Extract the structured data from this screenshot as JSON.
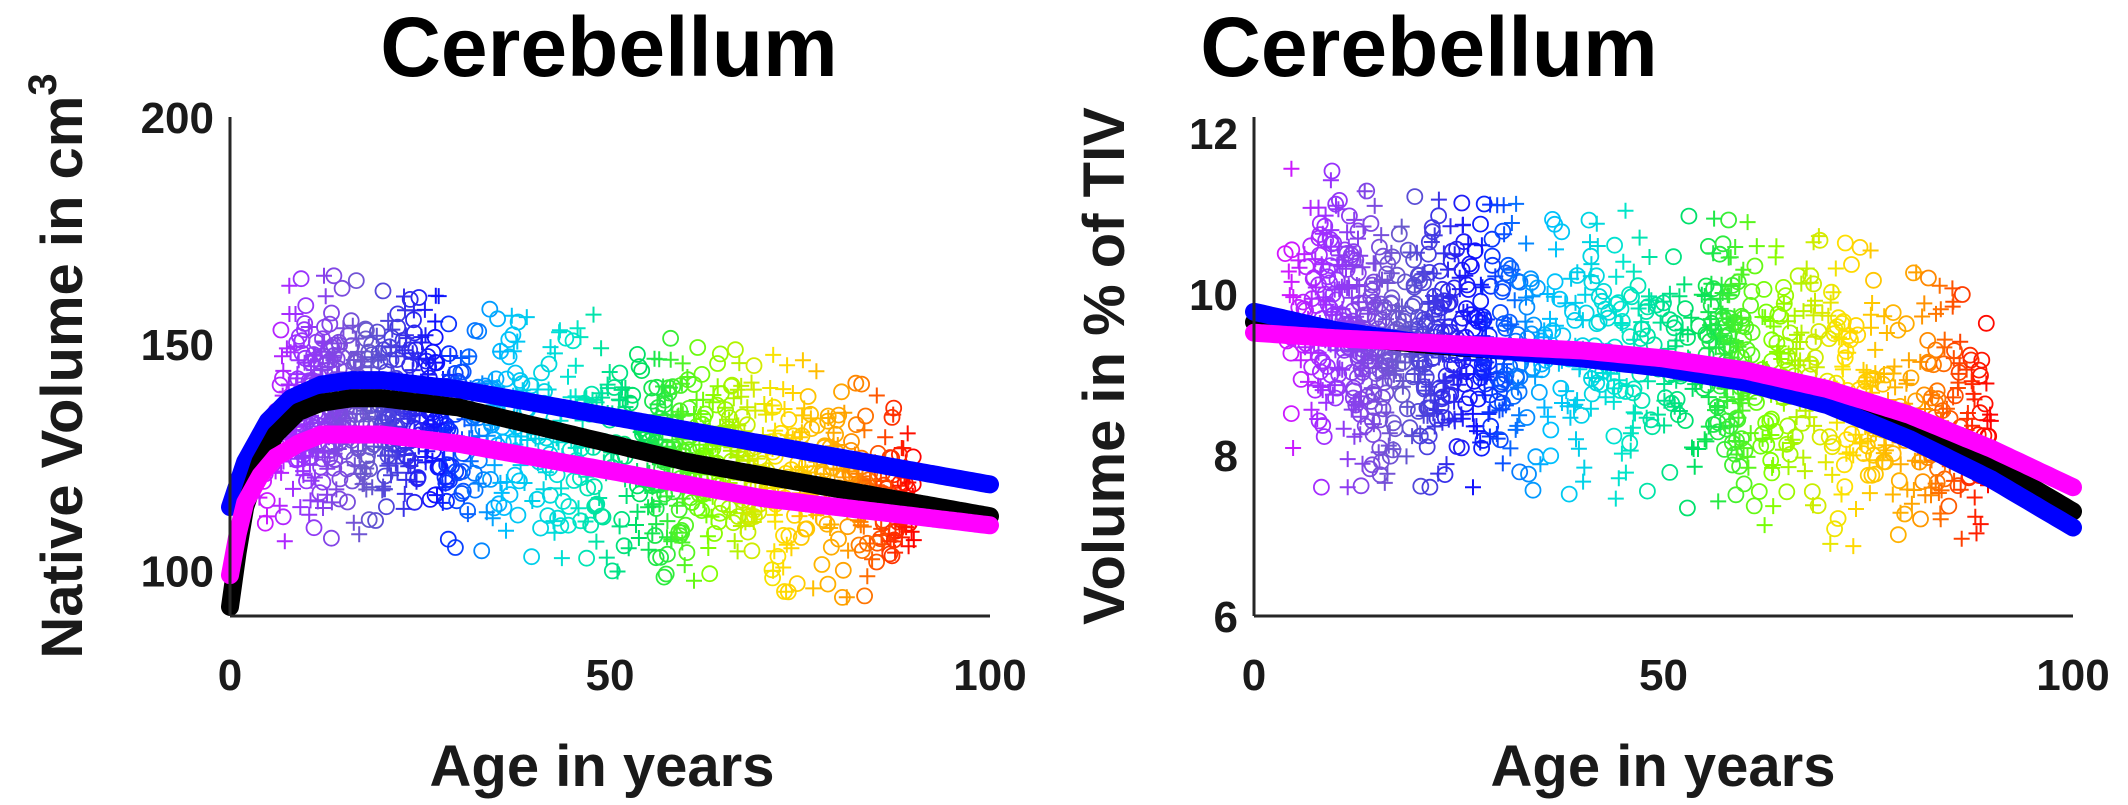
{
  "chart_data": [
    {
      "type": "scatter",
      "title": "Cerebellum",
      "xlabel": "Age in years",
      "ylabel": "Native Volume in cm",
      "ylabel_superscript": "3",
      "xlim": [
        0,
        100
      ],
      "ylim": [
        90,
        200
      ],
      "xticks": [
        "0",
        "50",
        "100"
      ],
      "yticks": [
        "100",
        "150",
        "200"
      ],
      "xtick_values": [
        0,
        50,
        100
      ],
      "ytick_values": [
        100,
        150,
        200
      ],
      "grid": false,
      "scatter_description": "Dense cloud of open circles and plus markers colored by age (purple/magenta at young ages through blue, cyan, green, yellow, orange to red at old ages).",
      "marker_color_ramp": [
        "#ff00ff",
        "#9b30ff",
        "#6a5acd",
        "#1010ff",
        "#00bfff",
        "#00e5cc",
        "#00e060",
        "#7fff00",
        "#ffe000",
        "#ffa000",
        "#ff0000"
      ],
      "cloud_envelope": [
        {
          "x": 1,
          "lo": 98,
          "hi": 136
        },
        {
          "x": 5,
          "lo": 103,
          "hi": 160
        },
        {
          "x": 10,
          "lo": 105,
          "hi": 165
        },
        {
          "x": 15,
          "lo": 108,
          "hi": 165
        },
        {
          "x": 20,
          "lo": 108,
          "hi": 162
        },
        {
          "x": 30,
          "lo": 105,
          "hi": 160
        },
        {
          "x": 40,
          "lo": 103,
          "hi": 158
        },
        {
          "x": 50,
          "lo": 100,
          "hi": 156
        },
        {
          "x": 60,
          "lo": 98,
          "hi": 150
        },
        {
          "x": 70,
          "lo": 96,
          "hi": 148
        },
        {
          "x": 80,
          "lo": 94,
          "hi": 145
        },
        {
          "x": 88,
          "lo": 95,
          "hi": 135
        },
        {
          "x": 92,
          "lo": 98,
          "hi": 125
        }
      ],
      "series": [
        {
          "color": "#0000ff",
          "x": [
            0,
            2,
            5,
            8,
            12,
            16,
            20,
            25,
            30,
            40,
            50,
            60,
            70,
            80,
            90,
            100
          ],
          "y": [
            114,
            124,
            133,
            138,
            141,
            142,
            142,
            141,
            140,
            137,
            134,
            131,
            128,
            125,
            122,
            119
          ]
        },
        {
          "color": "#000000",
          "x": [
            0,
            1,
            2,
            4,
            6,
            9,
            12,
            16,
            20,
            25,
            30,
            40,
            50,
            60,
            70,
            80,
            90,
            100
          ],
          "y": [
            92,
            104,
            114,
            124,
            130,
            135,
            137,
            138,
            138,
            137,
            136,
            132,
            128,
            124,
            121,
            118,
            115,
            112
          ]
        },
        {
          "color": "#ff00ff",
          "x": [
            0,
            1,
            2,
            4,
            6,
            9,
            12,
            16,
            20,
            25,
            30,
            40,
            50,
            60,
            70,
            80,
            90,
            100
          ],
          "y": [
            99,
            108,
            115,
            121,
            125,
            128,
            130,
            130,
            130,
            129,
            128,
            125,
            122,
            119,
            116,
            114,
            112,
            110
          ]
        }
      ]
    },
    {
      "type": "scatter",
      "title": "Cerebellum",
      "xlabel": "Age in years",
      "ylabel": "Volume in % of TIV",
      "xlim": [
        0,
        100
      ],
      "ylim": [
        6,
        12.2
      ],
      "xticks": [
        "0",
        "50",
        "100"
      ],
      "yticks": [
        "6",
        "8",
        "10",
        "12"
      ],
      "xtick_values": [
        0,
        50,
        100
      ],
      "ytick_values": [
        6,
        8,
        10,
        12
      ],
      "grid": false,
      "scatter_description": "Dense cloud of open circles and plus markers colored by age (purple/magenta at young ages through blue, cyan, green, yellow, orange to red at old ages).",
      "marker_color_ramp": [
        "#ff00ff",
        "#9b30ff",
        "#6a5acd",
        "#1010ff",
        "#00bfff",
        "#00e5cc",
        "#00e060",
        "#7fff00",
        "#ffe000",
        "#ffa000",
        "#ff0000"
      ],
      "cloud_envelope": [
        {
          "x": 1,
          "lo": 7.6,
          "hi": 11.4
        },
        {
          "x": 5,
          "lo": 7.6,
          "hi": 11.8
        },
        {
          "x": 10,
          "lo": 7.6,
          "hi": 11.5
        },
        {
          "x": 20,
          "lo": 7.6,
          "hi": 11.2
        },
        {
          "x": 30,
          "lo": 7.6,
          "hi": 11.1
        },
        {
          "x": 40,
          "lo": 7.5,
          "hi": 11.2
        },
        {
          "x": 50,
          "lo": 7.4,
          "hi": 11.0
        },
        {
          "x": 60,
          "lo": 7.2,
          "hi": 10.9
        },
        {
          "x": 70,
          "lo": 6.9,
          "hi": 10.7
        },
        {
          "x": 80,
          "lo": 6.8,
          "hi": 10.4
        },
        {
          "x": 88,
          "lo": 7.0,
          "hi": 9.9
        },
        {
          "x": 93,
          "lo": 7.1,
          "hi": 9.2
        }
      ],
      "series": [
        {
          "color": "#000000",
          "x": [
            0,
            10,
            20,
            30,
            40,
            50,
            60,
            70,
            80,
            90,
            100
          ],
          "y": [
            9.65,
            9.48,
            9.38,
            9.3,
            9.22,
            9.1,
            8.95,
            8.7,
            8.35,
            7.9,
            7.3
          ]
        },
        {
          "color": "#0000ff",
          "x": [
            0,
            10,
            20,
            30,
            40,
            50,
            60,
            70,
            80,
            90,
            100
          ],
          "y": [
            9.78,
            9.55,
            9.4,
            9.3,
            9.2,
            9.08,
            8.9,
            8.62,
            8.2,
            7.7,
            7.1
          ]
        },
        {
          "color": "#ff00ff",
          "x": [
            0,
            10,
            20,
            30,
            40,
            50,
            60,
            70,
            80,
            90,
            100
          ],
          "y": [
            9.52,
            9.45,
            9.4,
            9.35,
            9.3,
            9.2,
            9.05,
            8.82,
            8.5,
            8.08,
            7.6
          ]
        }
      ]
    }
  ]
}
